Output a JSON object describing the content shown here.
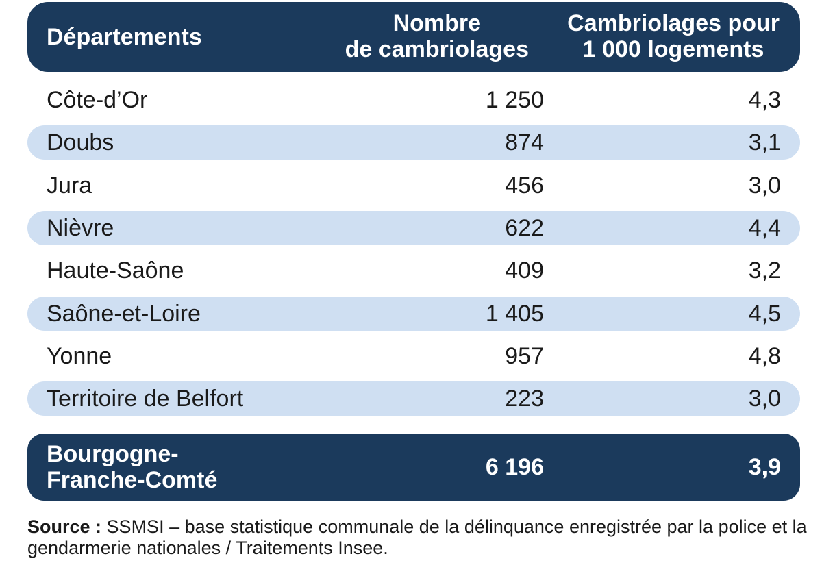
{
  "chart_data": {
    "type": "table",
    "columns": [
      "Départements",
      "Nombre\nde cambriolages",
      "Cambriolages pour\n1 000 logements"
    ],
    "rows": [
      {
        "name": "Côte-d’Or",
        "count": "1 250",
        "rate": "4,3"
      },
      {
        "name": "Doubs",
        "count": "874",
        "rate": "3,1"
      },
      {
        "name": "Jura",
        "count": "456",
        "rate": "3,0"
      },
      {
        "name": "Nièvre",
        "count": "622",
        "rate": "4,4"
      },
      {
        "name": "Haute-Saône",
        "count": "409",
        "rate": "3,2"
      },
      {
        "name": "Saône-et-Loire",
        "count": "1 405",
        "rate": "4,5"
      },
      {
        "name": "Yonne",
        "count": "957",
        "rate": "4,8"
      },
      {
        "name": "Territoire de Belfort",
        "count": "223",
        "rate": "3,0"
      }
    ],
    "total": {
      "name": "Bourgogne-\nFranche-Comté",
      "count": "6 196",
      "rate": "3,9"
    }
  },
  "source": {
    "label": "Source :",
    "text": "SSMSI – base statistique communale de la délinquance enregistrée par la police et la gendarmerie nationales / Traitements Insee."
  },
  "colors": {
    "header_bg": "#1b3a5c",
    "row_shade": "#cfdff2",
    "header_text": "#ffffff"
  }
}
